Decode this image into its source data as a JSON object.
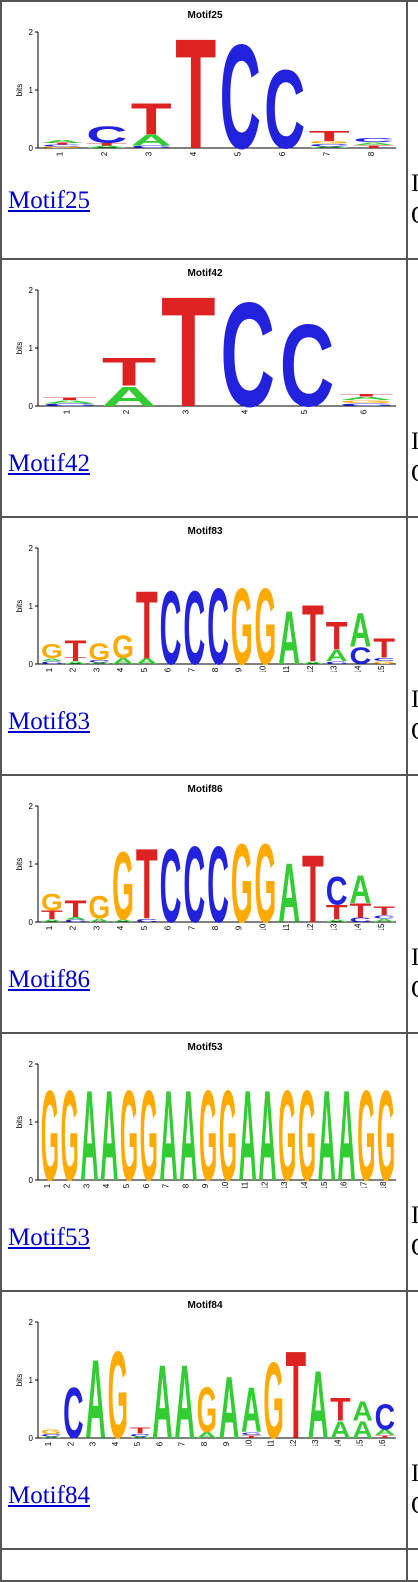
{
  "colors": {
    "A": "#33cc33",
    "C": "#2222dd",
    "G": "#ffaa00",
    "T": "#dd2222"
  },
  "axis_label": "bits",
  "motifs": [
    {
      "name": "Motif25",
      "link": "Motif25",
      "positions": [
        [
          [
            "G",
            0.03
          ],
          [
            "C",
            0.03
          ],
          [
            "T",
            0.03
          ],
          [
            "A",
            0.06
          ]
        ],
        [
          [
            "A",
            0.04
          ],
          [
            "T",
            0.05
          ],
          [
            "C",
            0.3
          ]
        ],
        [
          [
            "C",
            0.04
          ],
          [
            "A",
            0.2
          ],
          [
            "T",
            0.55
          ]
        ],
        [
          [
            "T",
            1.95
          ]
        ],
        [
          [
            "C",
            1.85
          ]
        ],
        [
          [
            "C",
            1.4
          ]
        ],
        [
          [
            "A",
            0.03
          ],
          [
            "C",
            0.05
          ],
          [
            "G",
            0.04
          ],
          [
            "T",
            0.18
          ]
        ],
        [
          [
            "T",
            0.05
          ],
          [
            "A",
            0.05
          ],
          [
            "C",
            0.07
          ]
        ]
      ],
      "side_a": "I",
      "side_b": "O"
    },
    {
      "name": "Motif42",
      "link": "Motif42",
      "positions": [
        [
          [
            "C",
            0.04
          ],
          [
            "A",
            0.06
          ],
          [
            "T",
            0.05
          ]
        ],
        [
          [
            "A",
            0.35
          ],
          [
            "T",
            0.5
          ]
        ],
        [
          [
            "T",
            1.95
          ]
        ],
        [
          [
            "C",
            1.85
          ]
        ],
        [
          [
            "C",
            1.45
          ]
        ],
        [
          [
            "C",
            0.05
          ],
          [
            "G",
            0.05
          ],
          [
            "A",
            0.06
          ],
          [
            "T",
            0.05
          ]
        ]
      ],
      "side_a": "I",
      "side_b": "O"
    },
    {
      "name": "Motif83",
      "link": "Motif83",
      "positions": [
        [
          [
            "C",
            0.05
          ],
          [
            "A",
            0.05
          ],
          [
            "G",
            0.25
          ]
        ],
        [
          [
            "A",
            0.05
          ],
          [
            "T",
            0.07
          ],
          [
            "T",
            0.3
          ]
        ],
        [
          [
            "A",
            0.03
          ],
          [
            "C",
            0.04
          ],
          [
            "G",
            0.3
          ]
        ],
        [
          [
            "A",
            0.1
          ],
          [
            "G",
            0.4
          ]
        ],
        [
          [
            "A",
            0.1
          ],
          [
            "T",
            1.2
          ]
        ],
        [
          [
            "C",
            1.3
          ]
        ],
        [
          [
            "C",
            1.3
          ]
        ],
        [
          [
            "C",
            1.35
          ]
        ],
        [
          [
            "G",
            1.35
          ]
        ],
        [
          [
            "G",
            1.35
          ]
        ],
        [
          [
            "A",
            0.95
          ]
        ],
        [
          [
            "A",
            0.05
          ],
          [
            "T",
            1.0
          ]
        ],
        [
          [
            "C",
            0.05
          ],
          [
            "A",
            0.2
          ],
          [
            "T",
            0.5
          ]
        ],
        [
          [
            "C",
            0.3
          ],
          [
            "A",
            0.6
          ]
        ],
        [
          [
            "G",
            0.05
          ],
          [
            "C",
            0.06
          ],
          [
            "T",
            0.35
          ]
        ]
      ],
      "side_a": "I",
      "side_b": "O"
    },
    {
      "name": "Motif86",
      "link": "Motif86",
      "positions": [
        [
          [
            "A",
            0.05
          ],
          [
            "T",
            0.15
          ],
          [
            "G",
            0.3
          ]
        ],
        [
          [
            "C",
            0.04
          ],
          [
            "A",
            0.05
          ],
          [
            "T",
            0.3
          ]
        ],
        [
          [
            "A",
            0.06
          ],
          [
            "G",
            0.4
          ]
        ],
        [
          [
            "A",
            0.05
          ],
          [
            "G",
            1.2
          ]
        ],
        [
          [
            "C",
            0.06
          ],
          [
            "T",
            1.25
          ]
        ],
        [
          [
            "C",
            1.3
          ]
        ],
        [
          [
            "C",
            1.35
          ]
        ],
        [
          [
            "C",
            1.35
          ]
        ],
        [
          [
            "G",
            1.4
          ]
        ],
        [
          [
            "G",
            1.4
          ]
        ],
        [
          [
            "A",
            1.05
          ]
        ],
        [
          [
            "T",
            1.2
          ]
        ],
        [
          [
            "A",
            0.05
          ],
          [
            "T",
            0.25
          ],
          [
            "C",
            0.5
          ]
        ],
        [
          [
            "C",
            0.08
          ],
          [
            "T",
            0.25
          ],
          [
            "A",
            0.5
          ]
        ],
        [
          [
            "A",
            0.06
          ],
          [
            "C",
            0.06
          ],
          [
            "T",
            0.15
          ]
        ]
      ],
      "side_a": "I",
      "side_b": "O"
    },
    {
      "name": "Motif53",
      "link": "Motif53",
      "positions": [
        [
          [
            "G",
            1.6
          ]
        ],
        [
          [
            "G",
            1.6
          ]
        ],
        [
          [
            "A",
            1.6
          ]
        ],
        [
          [
            "A",
            1.6
          ]
        ],
        [
          [
            "G",
            1.6
          ]
        ],
        [
          [
            "G",
            1.6
          ]
        ],
        [
          [
            "A",
            1.6
          ]
        ],
        [
          [
            "A",
            1.6
          ]
        ],
        [
          [
            "G",
            1.6
          ]
        ],
        [
          [
            "G",
            1.6
          ]
        ],
        [
          [
            "A",
            1.6
          ]
        ],
        [
          [
            "A",
            1.6
          ]
        ],
        [
          [
            "G",
            1.6
          ]
        ],
        [
          [
            "G",
            1.6
          ]
        ],
        [
          [
            "A",
            1.6
          ]
        ],
        [
          [
            "A",
            1.6
          ]
        ],
        [
          [
            "G",
            1.6
          ]
        ],
        [
          [
            "G",
            1.6
          ]
        ]
      ],
      "side_a": "I",
      "side_b": "O"
    },
    {
      "name": "Motif84",
      "link": "Motif84",
      "positions": [
        [
          [
            "A",
            0.03
          ],
          [
            "C",
            0.04
          ],
          [
            "G",
            0.08
          ]
        ],
        [
          [
            "C",
            0.9
          ]
        ],
        [
          [
            "A",
            1.4
          ]
        ],
        [
          [
            "G",
            1.55
          ]
        ],
        [
          [
            "A",
            0.03
          ],
          [
            "C",
            0.05
          ],
          [
            "T",
            0.1
          ]
        ],
        [
          [
            "A",
            1.3
          ]
        ],
        [
          [
            "A",
            1.3
          ]
        ],
        [
          [
            "A",
            0.1
          ],
          [
            "G",
            0.8
          ]
        ],
        [
          [
            "A",
            1.1
          ]
        ],
        [
          [
            "T",
            0.05
          ],
          [
            "C",
            0.05
          ],
          [
            "A",
            0.8
          ]
        ],
        [
          [
            "G",
            1.35
          ]
        ],
        [
          [
            "T",
            1.55
          ]
        ],
        [
          [
            "A",
            1.2
          ]
        ],
        [
          [
            "A",
            0.3
          ],
          [
            "T",
            0.4
          ]
        ],
        [
          [
            "A",
            0.3
          ],
          [
            "A",
            0.35
          ]
        ],
        [
          [
            "T",
            0.05
          ],
          [
            "A",
            0.1
          ],
          [
            "C",
            0.45
          ]
        ]
      ],
      "side_a": "I",
      "side_b": "O"
    }
  ]
}
